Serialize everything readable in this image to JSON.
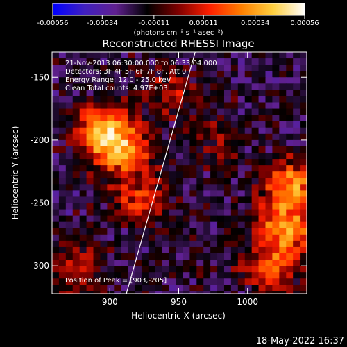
{
  "colorbar": {
    "tick_labels": [
      "-0.00056",
      "-0.00034",
      "-0.00011",
      "0.00011",
      "0.00034",
      "0.00056"
    ],
    "tick_values": [
      -0.00056,
      -0.00034,
      -0.00011,
      0.00011,
      0.00034,
      0.00056
    ],
    "unit_label": "(photons cm⁻² s⁻¹ asec⁻²)",
    "range": [
      -0.00056,
      0.00056
    ],
    "stops": [
      "#0000ff",
      "#4020c0",
      "#602090",
      "#000000",
      "#800000",
      "#ff2000",
      "#ff8000",
      "#ffd040",
      "#ffffff"
    ]
  },
  "chart_data": {
    "type": "heatmap",
    "title": "Reconstructed RHESSI Image",
    "xlabel": "Heliocentric X (arcsec)",
    "ylabel": "Heliocentric Y (arcsec)",
    "xlim": [
      858,
      1043
    ],
    "ylim": [
      -322,
      -130
    ],
    "x_ticks": [
      900,
      950,
      1000
    ],
    "y_ticks": [
      -300,
      -250,
      -200,
      -150
    ],
    "annotations": [
      "21-Nov-2013 06:30:00.000 to 06:33:04.000",
      "Detectors: 3F 4F 5F 6F 7F 8F, Att 0",
      "Energy Range: 12.0 - 25.0 keV",
      "Clean    Total counts: 4.97E+03",
      "Position of Peak = [903,-205]"
    ],
    "peak": [
      903,
      -205
    ],
    "limb_line": [
      [
        912,
        -322
      ],
      [
        962,
        -130
      ]
    ],
    "hot_regions": [
      {
        "x": 905,
        "y": -205,
        "intensity": 0.00056
      },
      {
        "x": 890,
        "y": -185,
        "intensity": 0.0004
      },
      {
        "x": 920,
        "y": -245,
        "intensity": 0.0003
      },
      {
        "x": 870,
        "y": -300,
        "intensity": 0.00025
      },
      {
        "x": 1028,
        "y": -235,
        "intensity": 0.0005
      },
      {
        "x": 1025,
        "y": -270,
        "intensity": 0.00045
      },
      {
        "x": 1015,
        "y": -300,
        "intensity": 0.00035
      },
      {
        "x": 940,
        "y": -160,
        "intensity": 0.0002
      },
      {
        "x": 975,
        "y": -200,
        "intensity": 0.00015
      }
    ],
    "grid": false
  },
  "footer": {
    "timestamp": "18-May-2022 16:37"
  }
}
